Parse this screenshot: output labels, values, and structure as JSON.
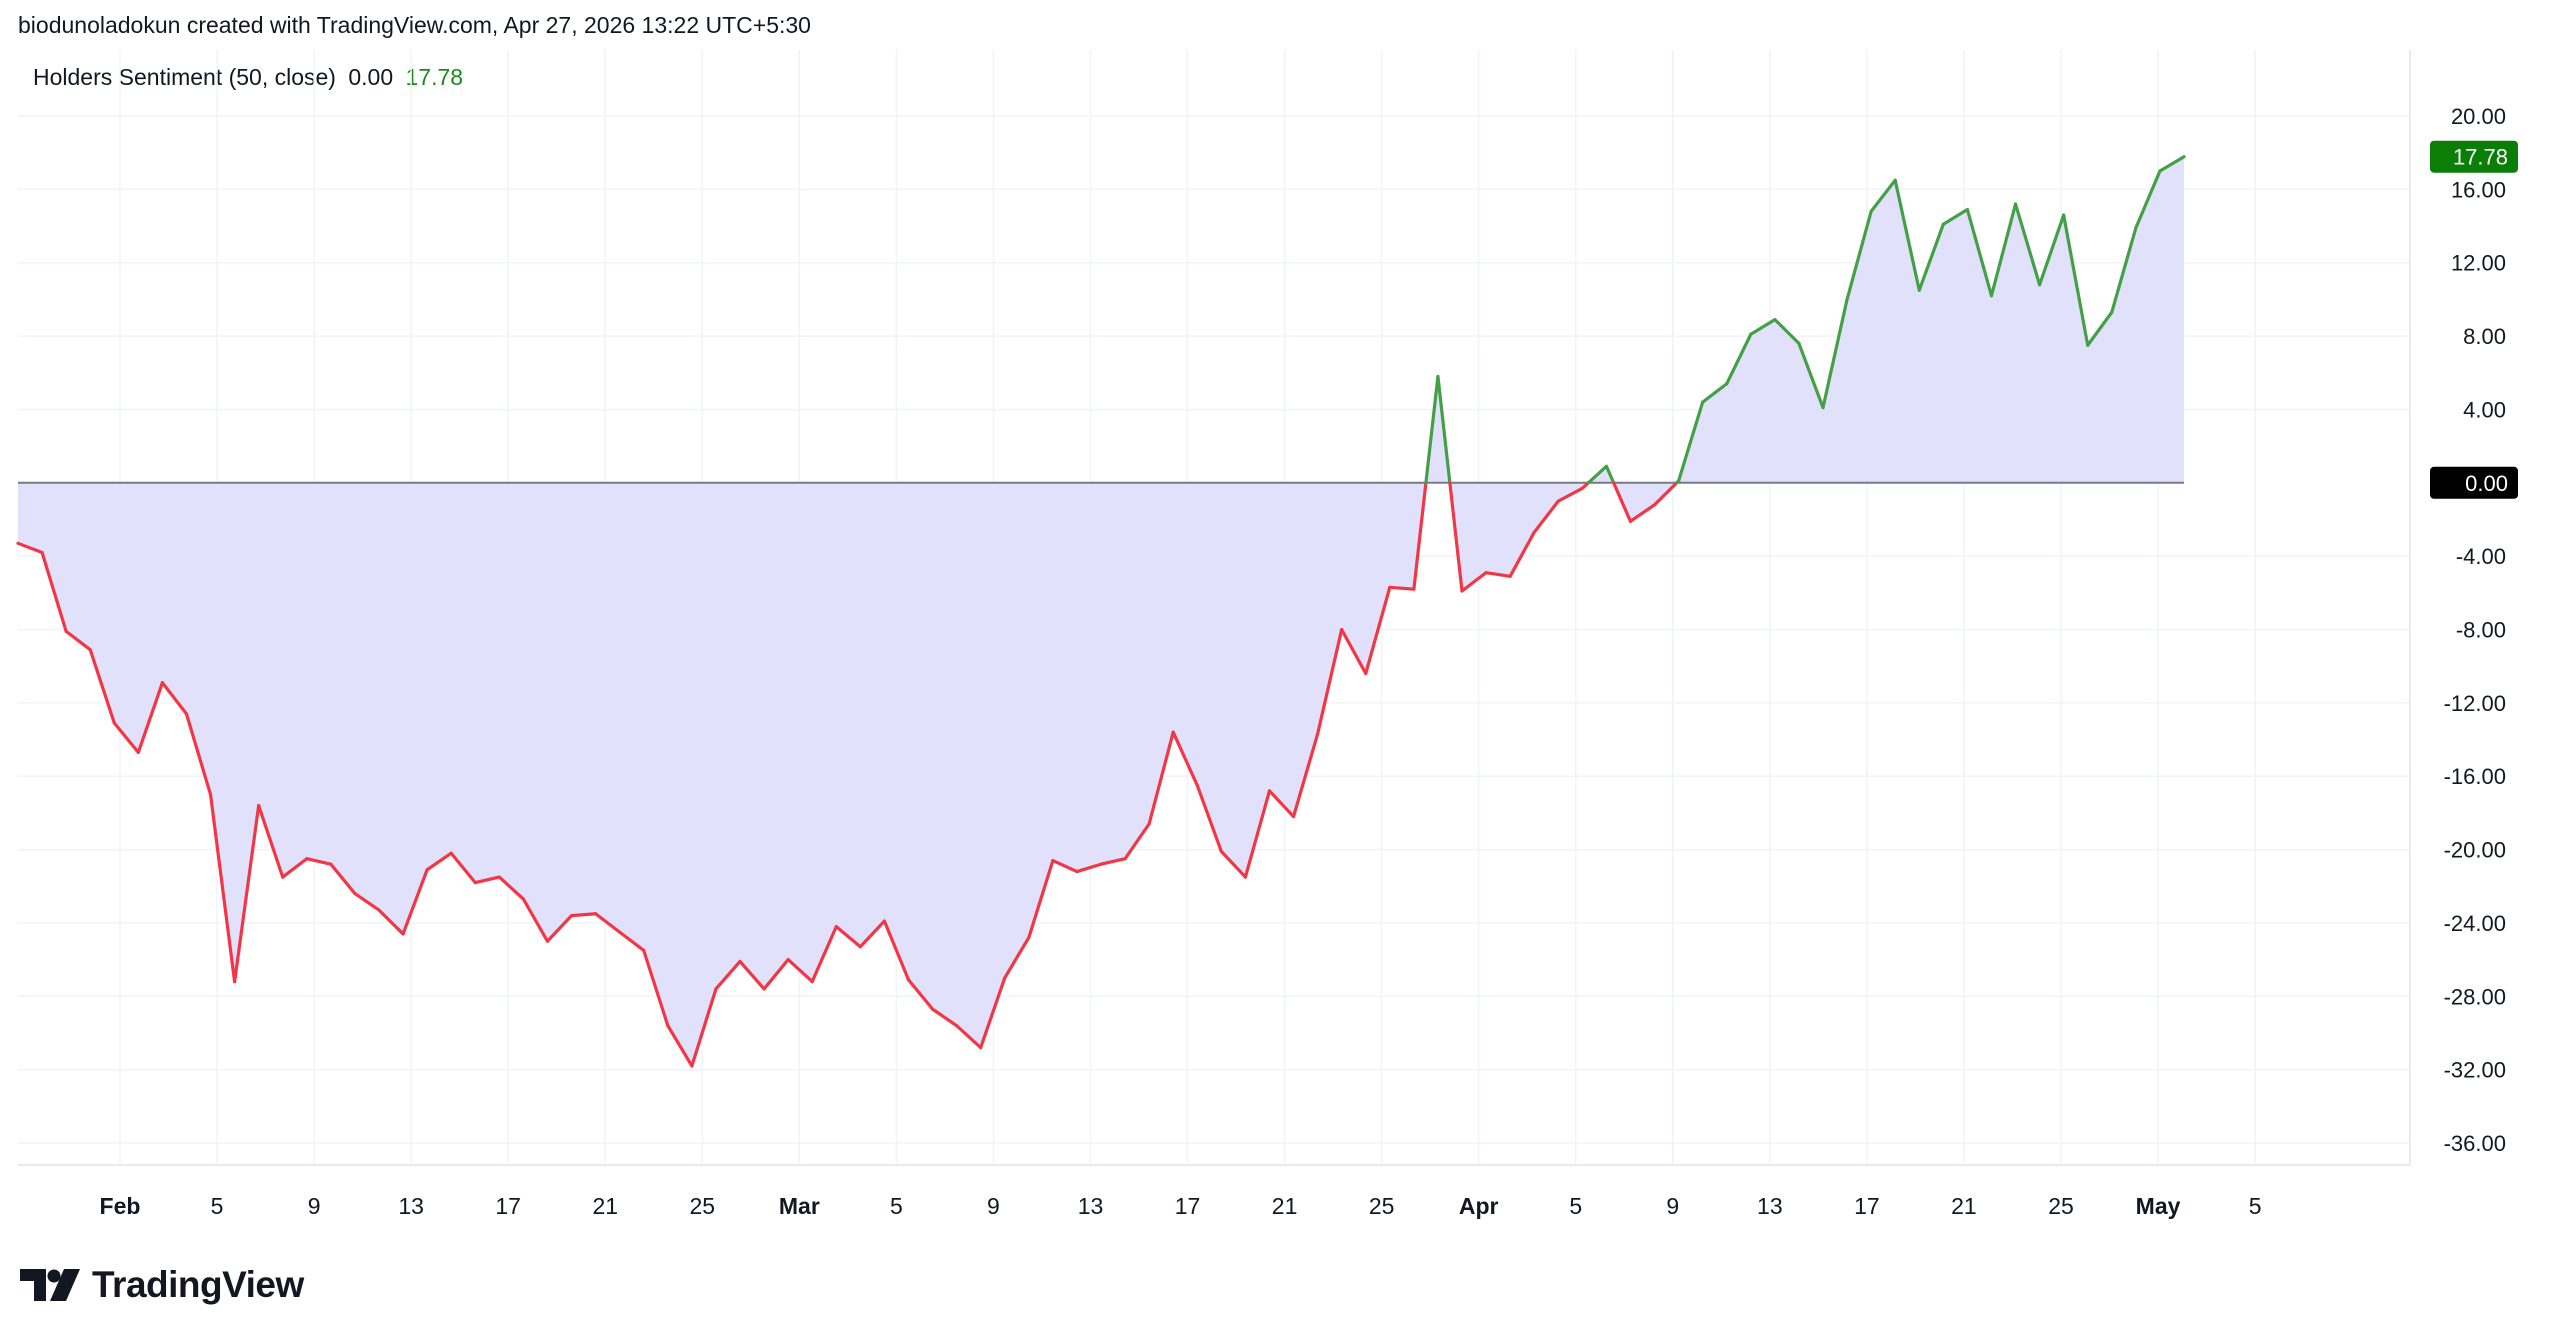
{
  "header": {
    "text": "biodunoladokun created with TradingView.com, Apr 27, 2026 13:22 UTC+5:30"
  },
  "legend": {
    "name": "Holders Sentiment (50, close)",
    "value1": "0.00",
    "value2": "17.78"
  },
  "branding": {
    "logo_text": "TradingView"
  },
  "colors": {
    "negative_line": "#f23645",
    "positive_line": "#43a047",
    "fill": "#e1e1fb",
    "zero_line": "#787b86",
    "badge_positive": "#0a7e07",
    "badge_zero": "#000000",
    "grid": "#f0f3fa"
  },
  "chart_data": {
    "type": "area",
    "x_ticks": [
      {
        "label": "Feb",
        "major": true
      },
      {
        "label": "5"
      },
      {
        "label": "9"
      },
      {
        "label": "13"
      },
      {
        "label": "17"
      },
      {
        "label": "21"
      },
      {
        "label": "25"
      },
      {
        "label": "Mar",
        "major": true
      },
      {
        "label": "5"
      },
      {
        "label": "9"
      },
      {
        "label": "13"
      },
      {
        "label": "17"
      },
      {
        "label": "21"
      },
      {
        "label": "25"
      },
      {
        "label": "Apr",
        "major": true
      },
      {
        "label": "5"
      },
      {
        "label": "9"
      },
      {
        "label": "13"
      },
      {
        "label": "17"
      },
      {
        "label": "21"
      },
      {
        "label": "25"
      },
      {
        "label": "May",
        "major": true
      },
      {
        "label": "5"
      }
    ],
    "y_ticks": [
      "20.00",
      "16.00",
      "12.00",
      "8.00",
      "4.00",
      "0.00",
      "-4.00",
      "-8.00",
      "-12.00",
      "-16.00",
      "-20.00",
      "-24.00",
      "-28.00",
      "-32.00",
      "-36.00"
    ],
    "ylim": [
      -37.2,
      23.6
    ],
    "baseline": 0,
    "series": [
      {
        "values": [
          -3.3,
          -3.8,
          -8.1,
          -9.1,
          -13.1,
          -14.7,
          -10.9,
          -12.6,
          -17.0,
          -27.2,
          -17.6,
          -21.5,
          -20.5,
          -20.8,
          -22.4,
          -23.3,
          -24.6,
          -21.1,
          -20.2,
          -21.8,
          -21.5,
          -22.7,
          -25.0,
          -23.6,
          -23.5,
          -24.5,
          -25.5,
          -29.6,
          -31.8,
          -27.6,
          -26.1,
          -27.6,
          -26.0,
          -27.2,
          -24.2,
          -25.3,
          -23.9,
          -27.1,
          -28.7,
          -29.6,
          -30.8,
          -27.0,
          -24.8,
          -20.6,
          -21.2,
          -20.8,
          -20.5,
          -18.6,
          -13.6,
          -16.5,
          -20.1,
          -21.5,
          -16.8,
          -18.2,
          -13.7,
          -8.0,
          -10.4,
          -5.7,
          -5.8,
          5.8,
          -5.9,
          -4.9,
          -5.1,
          -2.7,
          -1.0,
          -0.3,
          0.9,
          -2.1,
          -1.2,
          0.1,
          4.4,
          5.4,
          8.1,
          8.9,
          7.6,
          4.1,
          10.0,
          14.8,
          16.5,
          10.5,
          14.1,
          14.9,
          10.2,
          15.2,
          10.8,
          14.6,
          7.5,
          9.3,
          13.9,
          17.0,
          17.78
        ]
      }
    ],
    "last_value_label": "17.78",
    "baseline_label": "0.00"
  }
}
